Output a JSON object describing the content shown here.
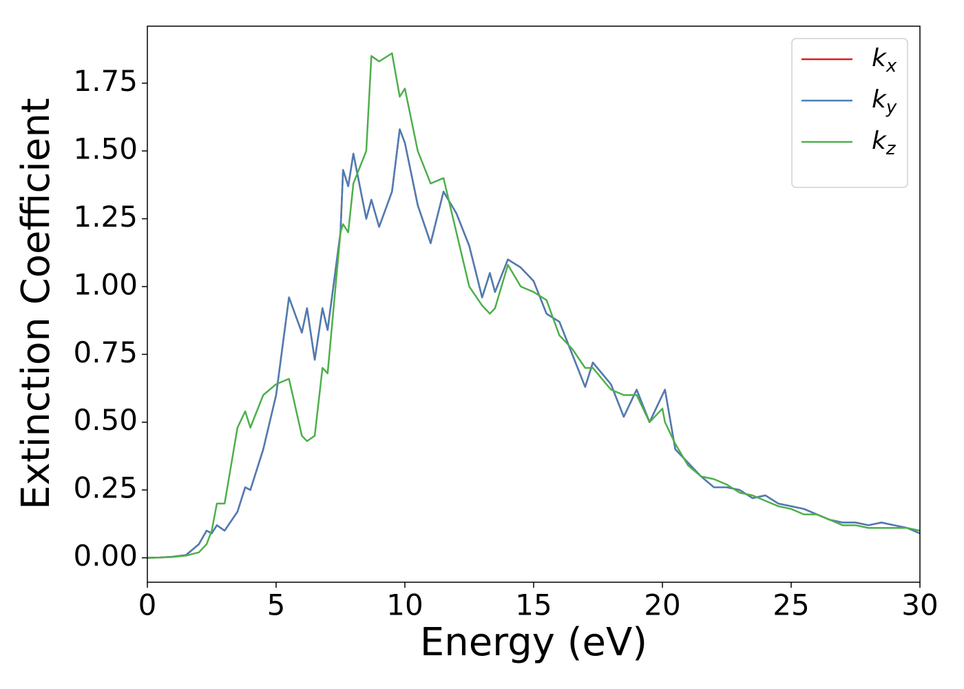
{
  "chart_data": {
    "type": "line",
    "xlabel": "Energy (eV)",
    "ylabel": "Extinction Coefficient",
    "x": [
      0,
      0.5,
      1,
      1.5,
      2,
      2.3,
      2.5,
      2.7,
      3,
      3.5,
      3.8,
      4,
      4.5,
      5,
      5.5,
      6,
      6.2,
      6.5,
      6.8,
      7,
      7.5,
      7.6,
      7.8,
      8,
      8.5,
      8.7,
      9,
      9.5,
      9.8,
      10,
      10.5,
      11,
      11.5,
      12,
      12.5,
      13,
      13.3,
      13.5,
      14,
      14.5,
      15,
      15.5,
      16,
      16.5,
      17,
      17.3,
      18,
      18.5,
      19,
      19.5,
      20,
      20.1,
      20.5,
      21,
      21.5,
      22,
      22.5,
      23,
      23.5,
      24,
      24.5,
      25,
      25.5,
      26,
      26.5,
      27,
      27.5,
      28,
      28.5,
      29,
      29.5,
      30
    ],
    "series": [
      {
        "name": "kx",
        "color": "#e41a1c",
        "values": [
          0,
          0.001,
          0.004,
          0.01,
          0.05,
          0.1,
          0.09,
          0.12,
          0.1,
          0.17,
          0.26,
          0.25,
          0.4,
          0.6,
          0.96,
          0.83,
          0.92,
          0.73,
          0.92,
          0.84,
          1.2,
          1.43,
          1.37,
          1.49,
          1.25,
          1.32,
          1.22,
          1.35,
          1.58,
          1.53,
          1.3,
          1.16,
          1.35,
          1.27,
          1.15,
          0.96,
          1.05,
          0.98,
          1.1,
          1.07,
          1.02,
          0.9,
          0.87,
          0.75,
          0.63,
          0.72,
          0.64,
          0.52,
          0.62,
          0.5,
          0.6,
          0.62,
          0.4,
          0.35,
          0.3,
          0.26,
          0.26,
          0.25,
          0.22,
          0.23,
          0.2,
          0.19,
          0.18,
          0.16,
          0.14,
          0.13,
          0.13,
          0.12,
          0.13,
          0.12,
          0.11,
          0.09
        ]
      },
      {
        "name": "ky",
        "color": "#4a7eb5",
        "values": [
          0,
          0.001,
          0.004,
          0.01,
          0.05,
          0.1,
          0.09,
          0.12,
          0.1,
          0.17,
          0.26,
          0.25,
          0.4,
          0.6,
          0.96,
          0.83,
          0.92,
          0.73,
          0.92,
          0.84,
          1.2,
          1.43,
          1.37,
          1.49,
          1.25,
          1.32,
          1.22,
          1.35,
          1.58,
          1.53,
          1.3,
          1.16,
          1.35,
          1.27,
          1.15,
          0.96,
          1.05,
          0.98,
          1.1,
          1.07,
          1.02,
          0.9,
          0.87,
          0.75,
          0.63,
          0.72,
          0.64,
          0.52,
          0.62,
          0.5,
          0.6,
          0.62,
          0.4,
          0.35,
          0.3,
          0.26,
          0.26,
          0.25,
          0.22,
          0.23,
          0.2,
          0.19,
          0.18,
          0.16,
          0.14,
          0.13,
          0.13,
          0.12,
          0.13,
          0.12,
          0.11,
          0.09
        ]
      },
      {
        "name": "kz",
        "color": "#4daf4a",
        "values": [
          0,
          0.001,
          0.003,
          0.008,
          0.02,
          0.05,
          0.1,
          0.2,
          0.2,
          0.48,
          0.54,
          0.48,
          0.6,
          0.64,
          0.66,
          0.45,
          0.43,
          0.45,
          0.7,
          0.68,
          1.2,
          1.23,
          1.2,
          1.38,
          1.5,
          1.85,
          1.83,
          1.86,
          1.7,
          1.73,
          1.5,
          1.38,
          1.4,
          1.2,
          1.0,
          0.93,
          0.9,
          0.92,
          1.08,
          1.0,
          0.98,
          0.95,
          0.82,
          0.77,
          0.7,
          0.7,
          0.62,
          0.6,
          0.6,
          0.5,
          0.55,
          0.5,
          0.42,
          0.34,
          0.3,
          0.29,
          0.27,
          0.24,
          0.23,
          0.21,
          0.19,
          0.18,
          0.16,
          0.16,
          0.14,
          0.12,
          0.12,
          0.11,
          0.11,
          0.11,
          0.11,
          0.1
        ]
      }
    ],
    "xlim": [
      0,
      30
    ],
    "xticks": [
      0,
      5,
      10,
      15,
      20,
      25,
      30
    ],
    "ylim": [
      -0.09,
      1.96
    ],
    "yticks": [
      {
        "value": 0,
        "label": "0.00"
      },
      {
        "value": 0.25,
        "label": "0.25"
      },
      {
        "value": 0.5,
        "label": "0.50"
      },
      {
        "value": 0.75,
        "label": "0.75"
      },
      {
        "value": 1,
        "label": "1.00"
      },
      {
        "value": 1.25,
        "label": "1.25"
      },
      {
        "value": 1.5,
        "label": "1.50"
      },
      {
        "value": 1.75,
        "label": "1.75"
      }
    ],
    "legend": "upper right",
    "grid": false
  }
}
